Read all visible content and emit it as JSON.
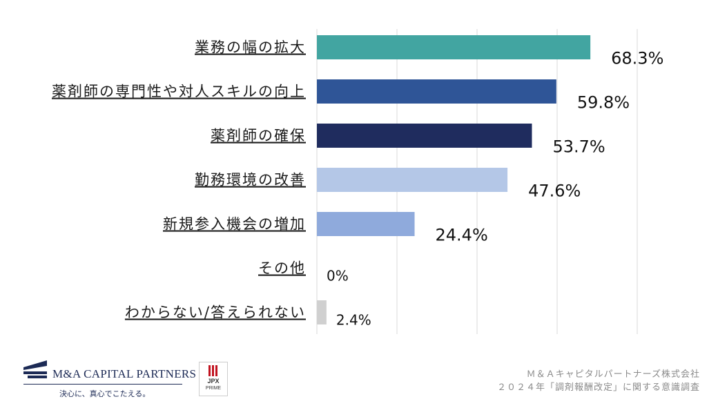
{
  "chart_data": {
    "type": "bar",
    "orientation": "horizontal",
    "categories": [
      "業務の幅の拡大",
      "薬剤師の専門性や対人スキルの向上",
      "薬剤師の確保",
      "勤務環境の改善",
      "新規参入機会の増加",
      "その他",
      "わからない/答えられない"
    ],
    "values": [
      68.3,
      59.8,
      53.7,
      47.6,
      24.4,
      0,
      2.4
    ],
    "value_labels": [
      "68.3%",
      "59.8%",
      "53.7%",
      "47.6%",
      "24.4%",
      "0%",
      "2.4%"
    ],
    "bar_colors": [
      "#42a5a1",
      "#2f5597",
      "#1f2c5e",
      "#b4c7e7",
      "#8faadc",
      "#8faadc",
      "#d0d0d0"
    ],
    "xlim": [
      0,
      80
    ],
    "grid": "vertical",
    "grid_color": "#d9d9d9"
  },
  "footer": {
    "company_logo": "M&A CAPITAL PARTNERS",
    "tagline": "決心に、真心でこたえる。",
    "exchange_badge": {
      "line1": "JPX",
      "line2": "PRIME"
    },
    "source_line1": "Ｍ＆Ａキャピタルパートナーズ株式会社",
    "source_line2": "２０２４年「調剤報酬改定」に関する意識調査"
  }
}
